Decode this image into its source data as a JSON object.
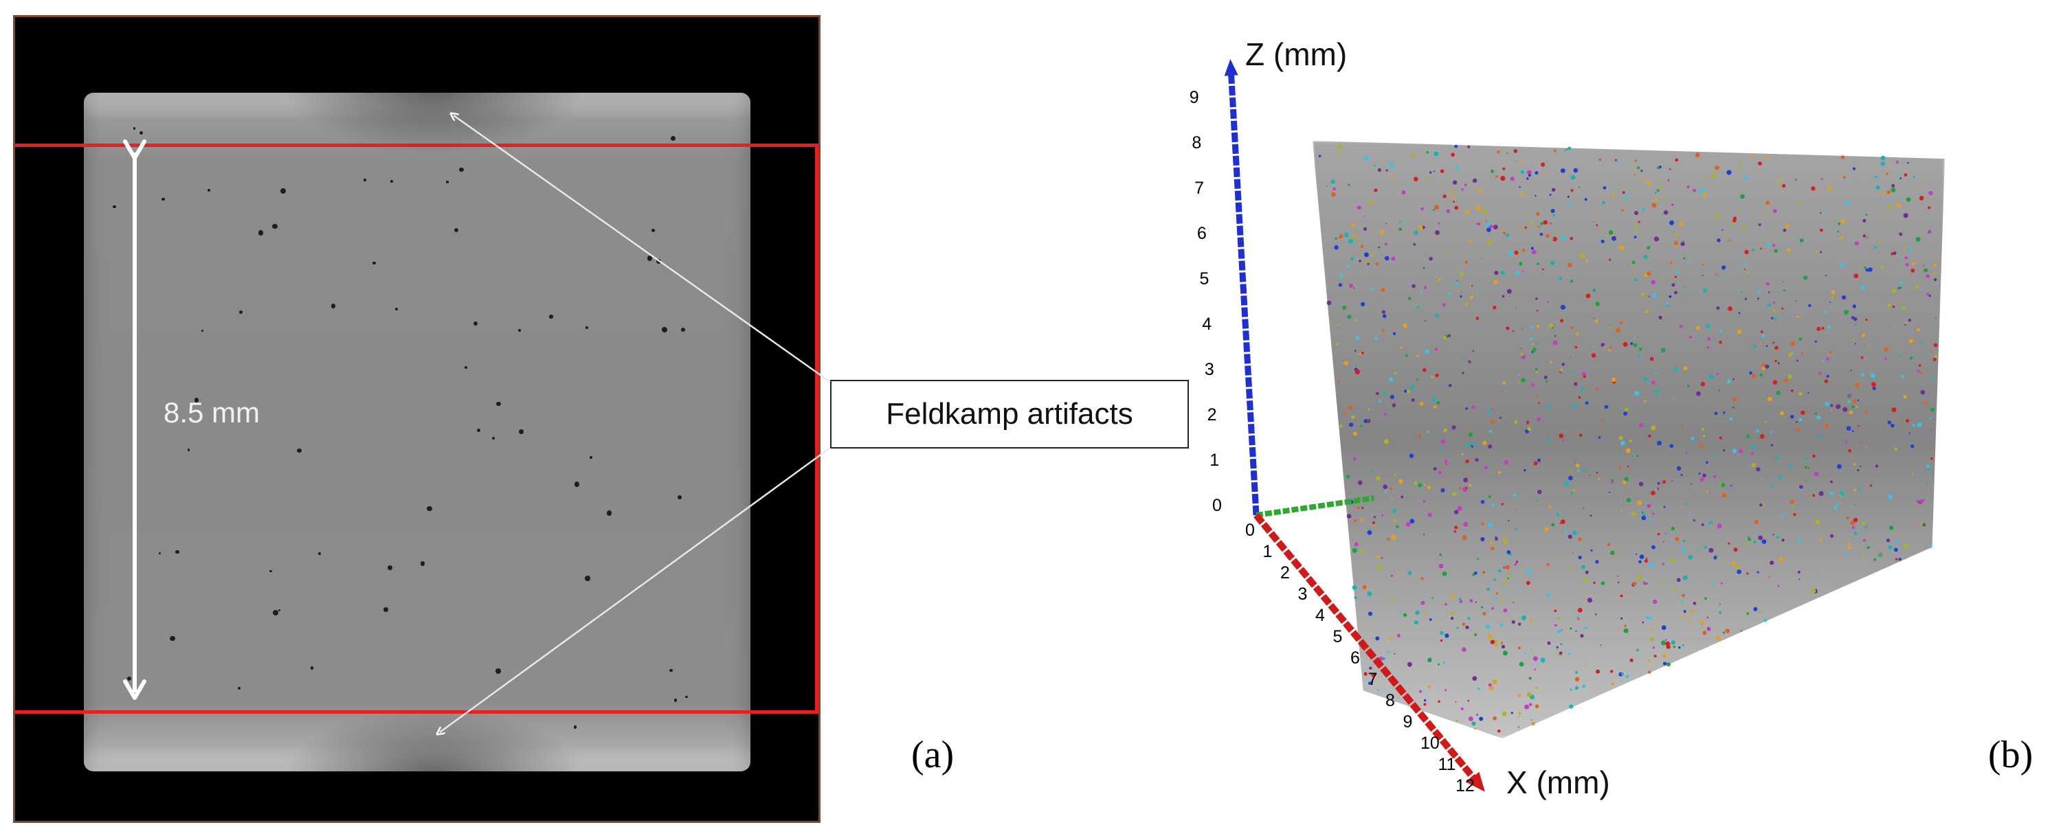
{
  "panel_a": {
    "dimension_label": "8.5 mm",
    "callout": "Feldkamp artifacts",
    "panel_label": "(a)",
    "colors": {
      "roi_box": "#e52020",
      "arrow": "#ffffff"
    }
  },
  "panel_b": {
    "panel_label": "(b)",
    "z_axis_label": "Z (mm)",
    "x_axis_label": "X (mm)",
    "z_ticks": [
      "0",
      "1",
      "2",
      "3",
      "4",
      "5",
      "6",
      "7",
      "8",
      "9"
    ],
    "x_ticks": [
      "0",
      "1",
      "2",
      "3",
      "4",
      "5",
      "6",
      "7",
      "8",
      "9",
      "10",
      "11",
      "12"
    ],
    "colors": {
      "z_axis": "#1f2fd0",
      "x_axis": "#d01a1a",
      "y_axis": "#2fa82f"
    }
  }
}
